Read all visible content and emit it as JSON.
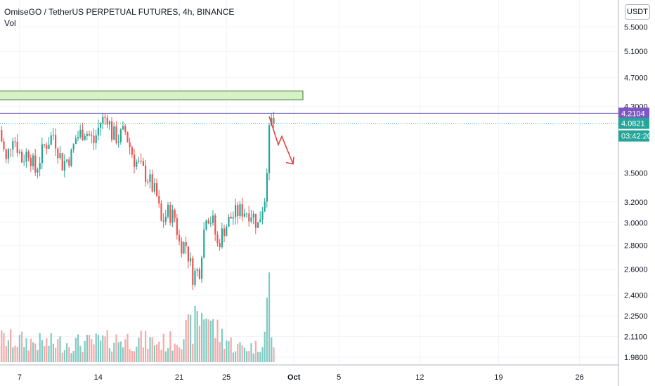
{
  "header": {
    "title": "OmiseGO / TetherUS PERPETUAL FUTURES, 4h, BINANCE",
    "volume_label": "Vol",
    "currency": "USDT"
  },
  "colors": {
    "up": "#26a69a",
    "down": "#ef5350",
    "vol_up": "#80cbc4",
    "vol_down": "#f7a9a7",
    "resistance_line": "#5c4fb8",
    "high_badge": "#7e57c2",
    "last_badge": "#26a69a",
    "zone_fill": "#d6f0c8",
    "zone_stroke": "#3a7a2a",
    "arrow": "#e53935",
    "grid": "#f0f3fa",
    "axis_border": "#b2b5be"
  },
  "chart_data": {
    "type": "candlestick",
    "title": "OmiseGO / TetherUS PERPETUAL FUTURES, 4h, BINANCE",
    "y_scale": "log",
    "ylim": [
      1.95,
      5.6
    ],
    "y_ticks": [
      "5.5000",
      "5.1000",
      "4.7000",
      "4.3000",
      "3.5000",
      "3.2000",
      "3.0000",
      "2.8000",
      "2.6000",
      "2.4000",
      "2.2500",
      "2.1100",
      "1.9800"
    ],
    "x_ticks": [
      "7",
      "14",
      "21",
      "25",
      "Oct",
      "5",
      "12",
      "19",
      "26"
    ],
    "grid": true,
    "price_labels": {
      "high": "4.2104",
      "last": "4.0821",
      "countdown": "03:42:20"
    },
    "resistance_level": 4.2104,
    "current_price": 4.0821,
    "supply_zone": [
      4.39,
      4.51
    ],
    "close_path": [
      [
        0,
        4.0
      ],
      [
        3,
        3.62
      ],
      [
        6,
        3.95
      ],
      [
        10,
        3.65
      ],
      [
        13,
        3.75
      ],
      [
        16,
        3.52
      ],
      [
        20,
        3.8
      ],
      [
        24,
        3.95
      ],
      [
        28,
        3.6
      ],
      [
        32,
        3.7
      ],
      [
        34,
        3.9
      ],
      [
        38,
        4.0
      ],
      [
        42,
        3.85
      ],
      [
        45,
        4.1
      ],
      [
        48,
        4.18
      ],
      [
        50,
        3.95
      ],
      [
        53,
        3.9
      ],
      [
        56,
        3.98
      ],
      [
        58,
        3.8
      ],
      [
        60,
        3.65
      ],
      [
        63,
        3.55
      ],
      [
        66,
        3.45
      ],
      [
        70,
        3.25
      ],
      [
        72,
        3.0
      ],
      [
        75,
        3.1
      ],
      [
        78,
        3.05
      ],
      [
        80,
        2.82
      ],
      [
        83,
        2.8
      ],
      [
        86,
        2.55
      ],
      [
        89,
        2.6
      ],
      [
        92,
        3.1
      ],
      [
        95,
        3.0
      ],
      [
        97,
        2.8
      ],
      [
        100,
        2.95
      ],
      [
        103,
        3.05
      ],
      [
        106,
        3.1
      ],
      [
        108,
        3.12
      ],
      [
        112,
        3.1
      ],
      [
        115,
        2.98
      ],
      [
        118,
        3.25
      ],
      [
        119,
        3.6
      ],
      [
        120,
        3.95
      ],
      [
        121,
        4.1
      ],
      [
        122,
        4.08
      ]
    ],
    "volume_profile": [
      [
        0,
        0.3
      ],
      [
        20,
        0.25
      ],
      [
        40,
        0.25
      ],
      [
        55,
        0.3
      ],
      [
        75,
        0.25
      ],
      [
        86,
        0.45
      ],
      [
        88,
        0.55
      ],
      [
        92,
        0.7
      ],
      [
        95,
        0.45
      ],
      [
        105,
        0.2
      ],
      [
        115,
        0.2
      ],
      [
        118,
        0.4
      ],
      [
        119,
        0.7
      ],
      [
        120,
        1.0
      ],
      [
        121,
        0.4
      ],
      [
        122,
        0.15
      ]
    ]
  }
}
